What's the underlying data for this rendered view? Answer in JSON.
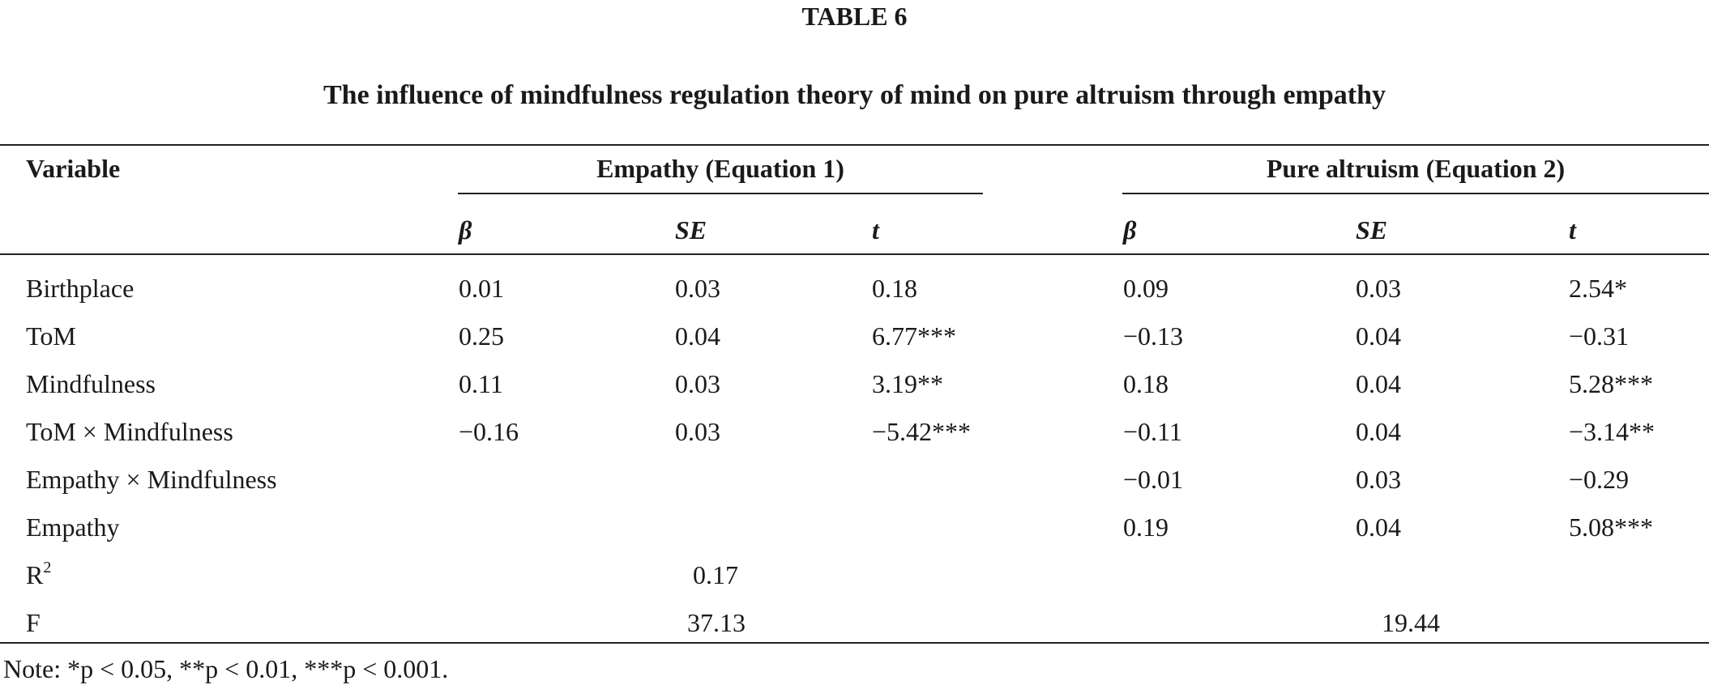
{
  "table": {
    "label": "TABLE 6",
    "title": "The influence of mindfulness regulation theory of mind on pure altruism through empathy",
    "header": {
      "variable": "Variable",
      "group1": "Empathy (Equation 1)",
      "group2": "Pure altruism (Equation 2)",
      "beta": "β",
      "se": "SE",
      "t": "t"
    },
    "rows": [
      {
        "label": "Birthplace",
        "b1": "0.01",
        "se1": "0.03",
        "t1": "0.18",
        "b2": "0.09",
        "se2": "0.03",
        "t2": "2.54*"
      },
      {
        "label": "ToM",
        "b1": "0.25",
        "se1": "0.04",
        "t1": "6.77***",
        "b2": "−0.13",
        "se2": "0.04",
        "t2": "−0.31"
      },
      {
        "label": "Mindfulness",
        "b1": "0.11",
        "se1": "0.03",
        "t1": "3.19**",
        "b2": "0.18",
        "se2": "0.04",
        "t2": "5.28***"
      },
      {
        "label": "ToM × Mindfulness",
        "b1": "−0.16",
        "se1": "0.03",
        "t1": "−5.42***",
        "b2": "−0.11",
        "se2": "0.04",
        "t2": "−3.14**"
      },
      {
        "label": "Empathy × Mindfulness",
        "b1": "",
        "se1": "",
        "t1": "",
        "b2": "−0.01",
        "se2": "0.03",
        "t2": "−0.29"
      },
      {
        "label": "Empathy",
        "b1": "",
        "se1": "",
        "t1": "",
        "b2": "0.19",
        "se2": "0.04",
        "t2": "5.08***"
      }
    ],
    "r2": {
      "label_base": "R",
      "label_sup": "2",
      "eq1": "0.17",
      "eq2": ""
    },
    "f": {
      "label": "F",
      "eq1": "37.13",
      "eq2": "19.44"
    },
    "note": "Note: *p < 0.05, **p < 0.01, ***p < 0.001."
  }
}
